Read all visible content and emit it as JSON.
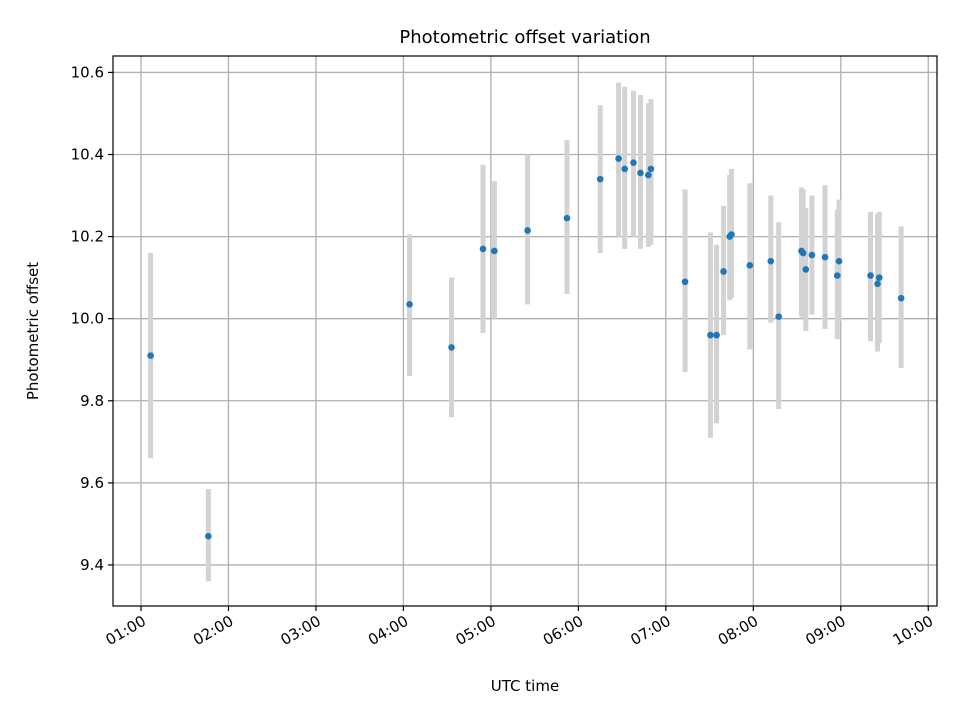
{
  "chart_data": {
    "type": "scatter",
    "title": "Photometric offset variation",
    "xlabel": "UTC time",
    "ylabel": "Photometric offset",
    "x_unit": "hours UTC",
    "xlim": [
      0.68,
      10.1
    ],
    "ylim": [
      9.3,
      10.64
    ],
    "grid": true,
    "x_ticks": [
      {
        "value": 1,
        "label": "01:00"
      },
      {
        "value": 2,
        "label": "02:00"
      },
      {
        "value": 3,
        "label": "03:00"
      },
      {
        "value": 4,
        "label": "04:00"
      },
      {
        "value": 5,
        "label": "05:00"
      },
      {
        "value": 6,
        "label": "06:00"
      },
      {
        "value": 7,
        "label": "07:00"
      },
      {
        "value": 8,
        "label": "08:00"
      },
      {
        "value": 9,
        "label": "09:00"
      },
      {
        "value": 10,
        "label": "10:00"
      }
    ],
    "y_ticks": [
      {
        "value": 9.4,
        "label": "9.4"
      },
      {
        "value": 9.6,
        "label": "9.6"
      },
      {
        "value": 9.8,
        "label": "9.8"
      },
      {
        "value": 10.0,
        "label": "10.0"
      },
      {
        "value": 10.2,
        "label": "10.2"
      },
      {
        "value": 10.4,
        "label": "10.4"
      },
      {
        "value": 10.6,
        "label": "10.6"
      }
    ],
    "colors": {
      "point": "#1f77b4",
      "errorbar": "#d3d3d3",
      "grid": "#b0b0b0"
    },
    "points": [
      {
        "x": 1.11,
        "y": 9.91,
        "lo": 9.66,
        "hi": 10.16
      },
      {
        "x": 1.77,
        "y": 9.47,
        "lo": 9.36,
        "hi": 9.585
      },
      {
        "x": 4.07,
        "y": 10.035,
        "lo": 9.86,
        "hi": 10.205
      },
      {
        "x": 4.55,
        "y": 9.93,
        "lo": 9.76,
        "hi": 10.1
      },
      {
        "x": 4.91,
        "y": 10.17,
        "lo": 9.965,
        "hi": 10.375
      },
      {
        "x": 5.04,
        "y": 10.165,
        "lo": 10.0,
        "hi": 10.335
      },
      {
        "x": 5.42,
        "y": 10.215,
        "lo": 10.035,
        "hi": 10.4
      },
      {
        "x": 5.87,
        "y": 10.245,
        "lo": 10.06,
        "hi": 10.435
      },
      {
        "x": 6.25,
        "y": 10.34,
        "lo": 10.16,
        "hi": 10.52
      },
      {
        "x": 6.46,
        "y": 10.39,
        "lo": 10.2,
        "hi": 10.575
      },
      {
        "x": 6.53,
        "y": 10.365,
        "lo": 10.17,
        "hi": 10.565
      },
      {
        "x": 6.63,
        "y": 10.38,
        "lo": 10.2,
        "hi": 10.555
      },
      {
        "x": 6.71,
        "y": 10.355,
        "lo": 10.17,
        "hi": 10.545
      },
      {
        "x": 6.8,
        "y": 10.35,
        "lo": 10.175,
        "hi": 10.525
      },
      {
        "x": 6.83,
        "y": 10.365,
        "lo": 10.18,
        "hi": 10.535
      },
      {
        "x": 7.22,
        "y": 10.09,
        "lo": 9.87,
        "hi": 10.315
      },
      {
        "x": 7.51,
        "y": 9.96,
        "lo": 9.71,
        "hi": 10.21
      },
      {
        "x": 7.58,
        "y": 9.96,
        "lo": 9.745,
        "hi": 10.18
      },
      {
        "x": 7.66,
        "y": 10.115,
        "lo": 9.96,
        "hi": 10.275
      },
      {
        "x": 7.73,
        "y": 10.2,
        "lo": 10.045,
        "hi": 10.35
      },
      {
        "x": 7.75,
        "y": 10.205,
        "lo": 10.05,
        "hi": 10.365
      },
      {
        "x": 7.96,
        "y": 10.13,
        "lo": 9.925,
        "hi": 10.33
      },
      {
        "x": 8.2,
        "y": 10.14,
        "lo": 9.99,
        "hi": 10.3
      },
      {
        "x": 8.29,
        "y": 10.005,
        "lo": 9.78,
        "hi": 10.235
      },
      {
        "x": 8.55,
        "y": 10.165,
        "lo": 10.005,
        "hi": 10.32
      },
      {
        "x": 8.57,
        "y": 10.16,
        "lo": 10.0,
        "hi": 10.315
      },
      {
        "x": 8.6,
        "y": 10.12,
        "lo": 9.97,
        "hi": 10.27
      },
      {
        "x": 8.67,
        "y": 10.155,
        "lo": 10.01,
        "hi": 10.3
      },
      {
        "x": 8.82,
        "y": 10.15,
        "lo": 9.975,
        "hi": 10.325
      },
      {
        "x": 8.96,
        "y": 10.105,
        "lo": 9.95,
        "hi": 10.265
      },
      {
        "x": 8.98,
        "y": 10.14,
        "lo": 9.995,
        "hi": 10.29
      },
      {
        "x": 9.34,
        "y": 10.105,
        "lo": 9.945,
        "hi": 10.26
      },
      {
        "x": 9.42,
        "y": 10.085,
        "lo": 9.92,
        "hi": 10.255
      },
      {
        "x": 9.44,
        "y": 10.1,
        "lo": 9.94,
        "hi": 10.26
      },
      {
        "x": 9.69,
        "y": 10.05,
        "lo": 9.88,
        "hi": 10.225
      }
    ]
  }
}
